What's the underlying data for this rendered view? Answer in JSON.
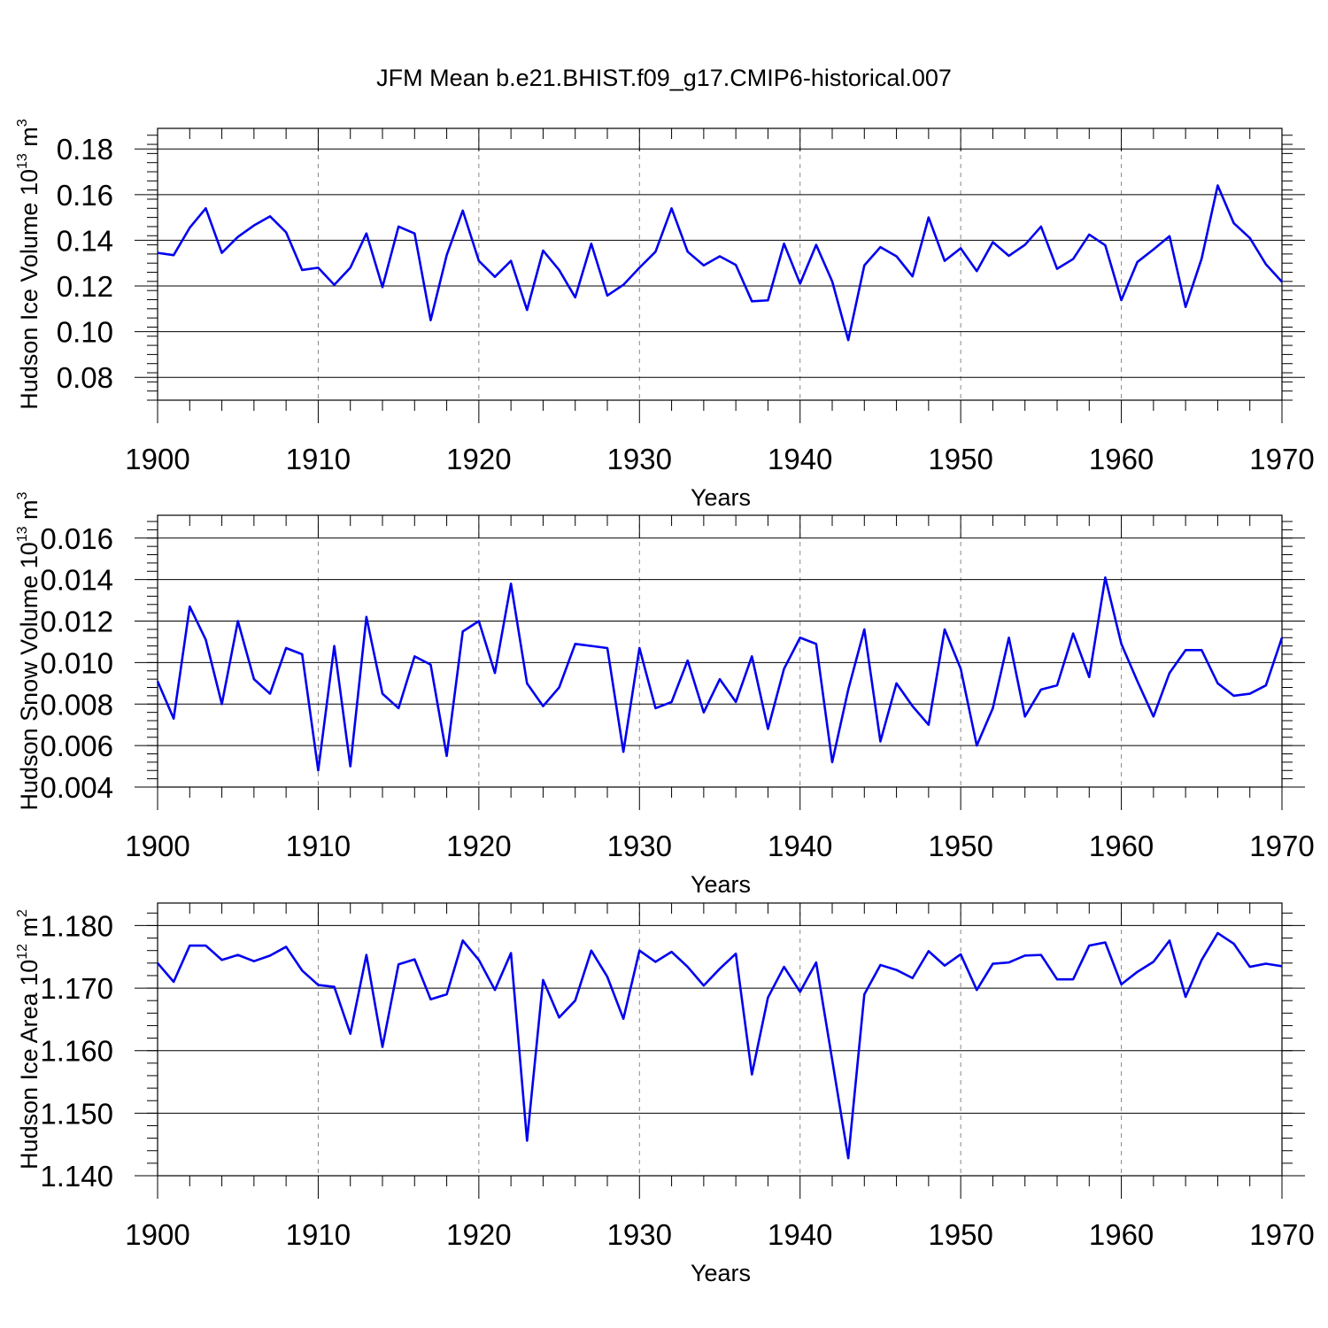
{
  "title": "JFM Mean b.e21.BHIST.f09_g17.CMIP6-historical.007",
  "colors": {
    "line": "#0000f0",
    "axis": "#000000",
    "grid": "#888888"
  },
  "chart_data": [
    {
      "type": "line",
      "ylabel_main": "Hudson Ice Volume 10",
      "ylabel_exp": "13",
      "ylabel_unit": " m",
      "ylabel_unit_exp": "3",
      "xlabel": "Years",
      "xlim": [
        1900,
        1970
      ],
      "ylim": [
        0.07,
        0.189
      ],
      "yticks": [
        0.08,
        0.1,
        0.12,
        0.14,
        0.16,
        0.18
      ],
      "ytick_labels": [
        "0.08",
        "0.10",
        "0.12",
        "0.14",
        "0.16",
        "0.18"
      ],
      "xticks": [
        1900,
        1910,
        1920,
        1930,
        1940,
        1950,
        1960,
        1970
      ],
      "xtick_labels": [
        "1900",
        "1910",
        "1920",
        "1930",
        "1940",
        "1950",
        "1960",
        "1970"
      ],
      "x_start": 1900,
      "values": [
        0.1345,
        0.1335,
        0.1455,
        0.154,
        0.1345,
        0.1415,
        0.1465,
        0.1505,
        0.1435,
        0.127,
        0.128,
        0.1205,
        0.128,
        0.143,
        0.1195,
        0.146,
        0.143,
        0.105,
        0.1335,
        0.153,
        0.131,
        0.124,
        0.131,
        0.1095,
        0.1355,
        0.127,
        0.115,
        0.1385,
        0.1158,
        0.1205,
        0.128,
        0.135,
        0.154,
        0.135,
        0.129,
        0.133,
        0.1292,
        0.1133,
        0.1137,
        0.1385,
        0.121,
        0.138,
        0.122,
        0.0963,
        0.129,
        0.137,
        0.133,
        0.1242,
        0.15,
        0.131,
        0.1365,
        0.1265,
        0.1392,
        0.1332,
        0.138,
        0.146,
        0.1275,
        0.1318,
        0.1425,
        0.1378,
        0.1138,
        0.1305,
        0.136,
        0.1418,
        0.1108,
        0.132,
        0.164,
        0.1475,
        0.141,
        0.1295,
        0.1218
      ]
    },
    {
      "type": "line",
      "ylabel_main": "Hudson Snow Volume 10",
      "ylabel_exp": "13",
      "ylabel_unit": " m",
      "ylabel_unit_exp": "3",
      "xlabel": "Years",
      "xlim": [
        1900,
        1970
      ],
      "ylim": [
        0.004,
        0.0171
      ],
      "yticks": [
        0.004,
        0.006,
        0.008,
        0.01,
        0.012,
        0.014,
        0.016
      ],
      "ytick_labels": [
        "0.004",
        "0.006",
        "0.008",
        "0.010",
        "0.012",
        "0.014",
        "0.016"
      ],
      "xticks": [
        1900,
        1910,
        1920,
        1930,
        1940,
        1950,
        1960,
        1970
      ],
      "xtick_labels": [
        "1900",
        "1910",
        "1920",
        "1930",
        "1940",
        "1950",
        "1960",
        "1970"
      ],
      "x_start": 1900,
      "values": [
        0.0091,
        0.0073,
        0.0127,
        0.0111,
        0.008,
        0.012,
        0.0092,
        0.0085,
        0.0107,
        0.0104,
        0.0048,
        0.0108,
        0.005,
        0.0122,
        0.0085,
        0.0078,
        0.0103,
        0.0099,
        0.0055,
        0.0115,
        0.012,
        0.0095,
        0.0138,
        0.009,
        0.0079,
        0.0088,
        0.0109,
        0.0108,
        0.0107,
        0.0057,
        0.0107,
        0.0078,
        0.0081,
        0.0101,
        0.0076,
        0.0092,
        0.0081,
        0.0103,
        0.0068,
        0.0097,
        0.0112,
        0.0109,
        0.0052,
        0.0087,
        0.0116,
        0.0062,
        0.009,
        0.0079,
        0.007,
        0.0116,
        0.0097,
        0.006,
        0.0078,
        0.0112,
        0.0074,
        0.0087,
        0.0089,
        0.0114,
        0.0093,
        0.0141,
        0.0109,
        0.0091,
        0.0074,
        0.0095,
        0.0106,
        0.0106,
        0.009,
        0.0084,
        0.0085,
        0.0089,
        0.0112
      ]
    },
    {
      "type": "line",
      "ylabel_main": "Hudson Ice Area 10",
      "ylabel_exp": "12",
      "ylabel_unit": " m",
      "ylabel_unit_exp": "2",
      "xlabel": "Years",
      "xlim": [
        1900,
        1970
      ],
      "ylim": [
        1.14,
        1.1836
      ],
      "yticks": [
        1.14,
        1.15,
        1.16,
        1.17,
        1.18
      ],
      "ytick_labels": [
        "1.140",
        "1.150",
        "1.160",
        "1.170",
        "1.180"
      ],
      "xticks": [
        1900,
        1910,
        1920,
        1930,
        1940,
        1950,
        1960,
        1970
      ],
      "xtick_labels": [
        "1900",
        "1910",
        "1920",
        "1930",
        "1940",
        "1950",
        "1960",
        "1970"
      ],
      "x_start": 1900,
      "values": [
        1.174,
        1.171,
        1.1768,
        1.1768,
        1.1745,
        1.1753,
        1.1743,
        1.1752,
        1.1766,
        1.1728,
        1.1705,
        1.1702,
        1.1627,
        1.1753,
        1.1606,
        1.1738,
        1.1746,
        1.1682,
        1.169,
        1.1776,
        1.1745,
        1.1697,
        1.1756,
        1.1456,
        1.1713,
        1.1653,
        1.168,
        1.176,
        1.1718,
        1.1651,
        1.176,
        1.1742,
        1.1758,
        1.1734,
        1.1704,
        1.1731,
        1.1755,
        1.1562,
        1.1685,
        1.1734,
        1.1694,
        1.1741,
        1.1585,
        1.1428,
        1.169,
        1.1737,
        1.1729,
        1.1716,
        1.1759,
        1.1736,
        1.1754,
        1.1697,
        1.1739,
        1.1741,
        1.1752,
        1.1753,
        1.1714,
        1.1714,
        1.1768,
        1.1773,
        1.1706,
        1.1726,
        1.1742,
        1.1776,
        1.1686,
        1.1745,
        1.1788,
        1.1771,
        1.1734,
        1.1739,
        1.1735
      ]
    }
  ]
}
